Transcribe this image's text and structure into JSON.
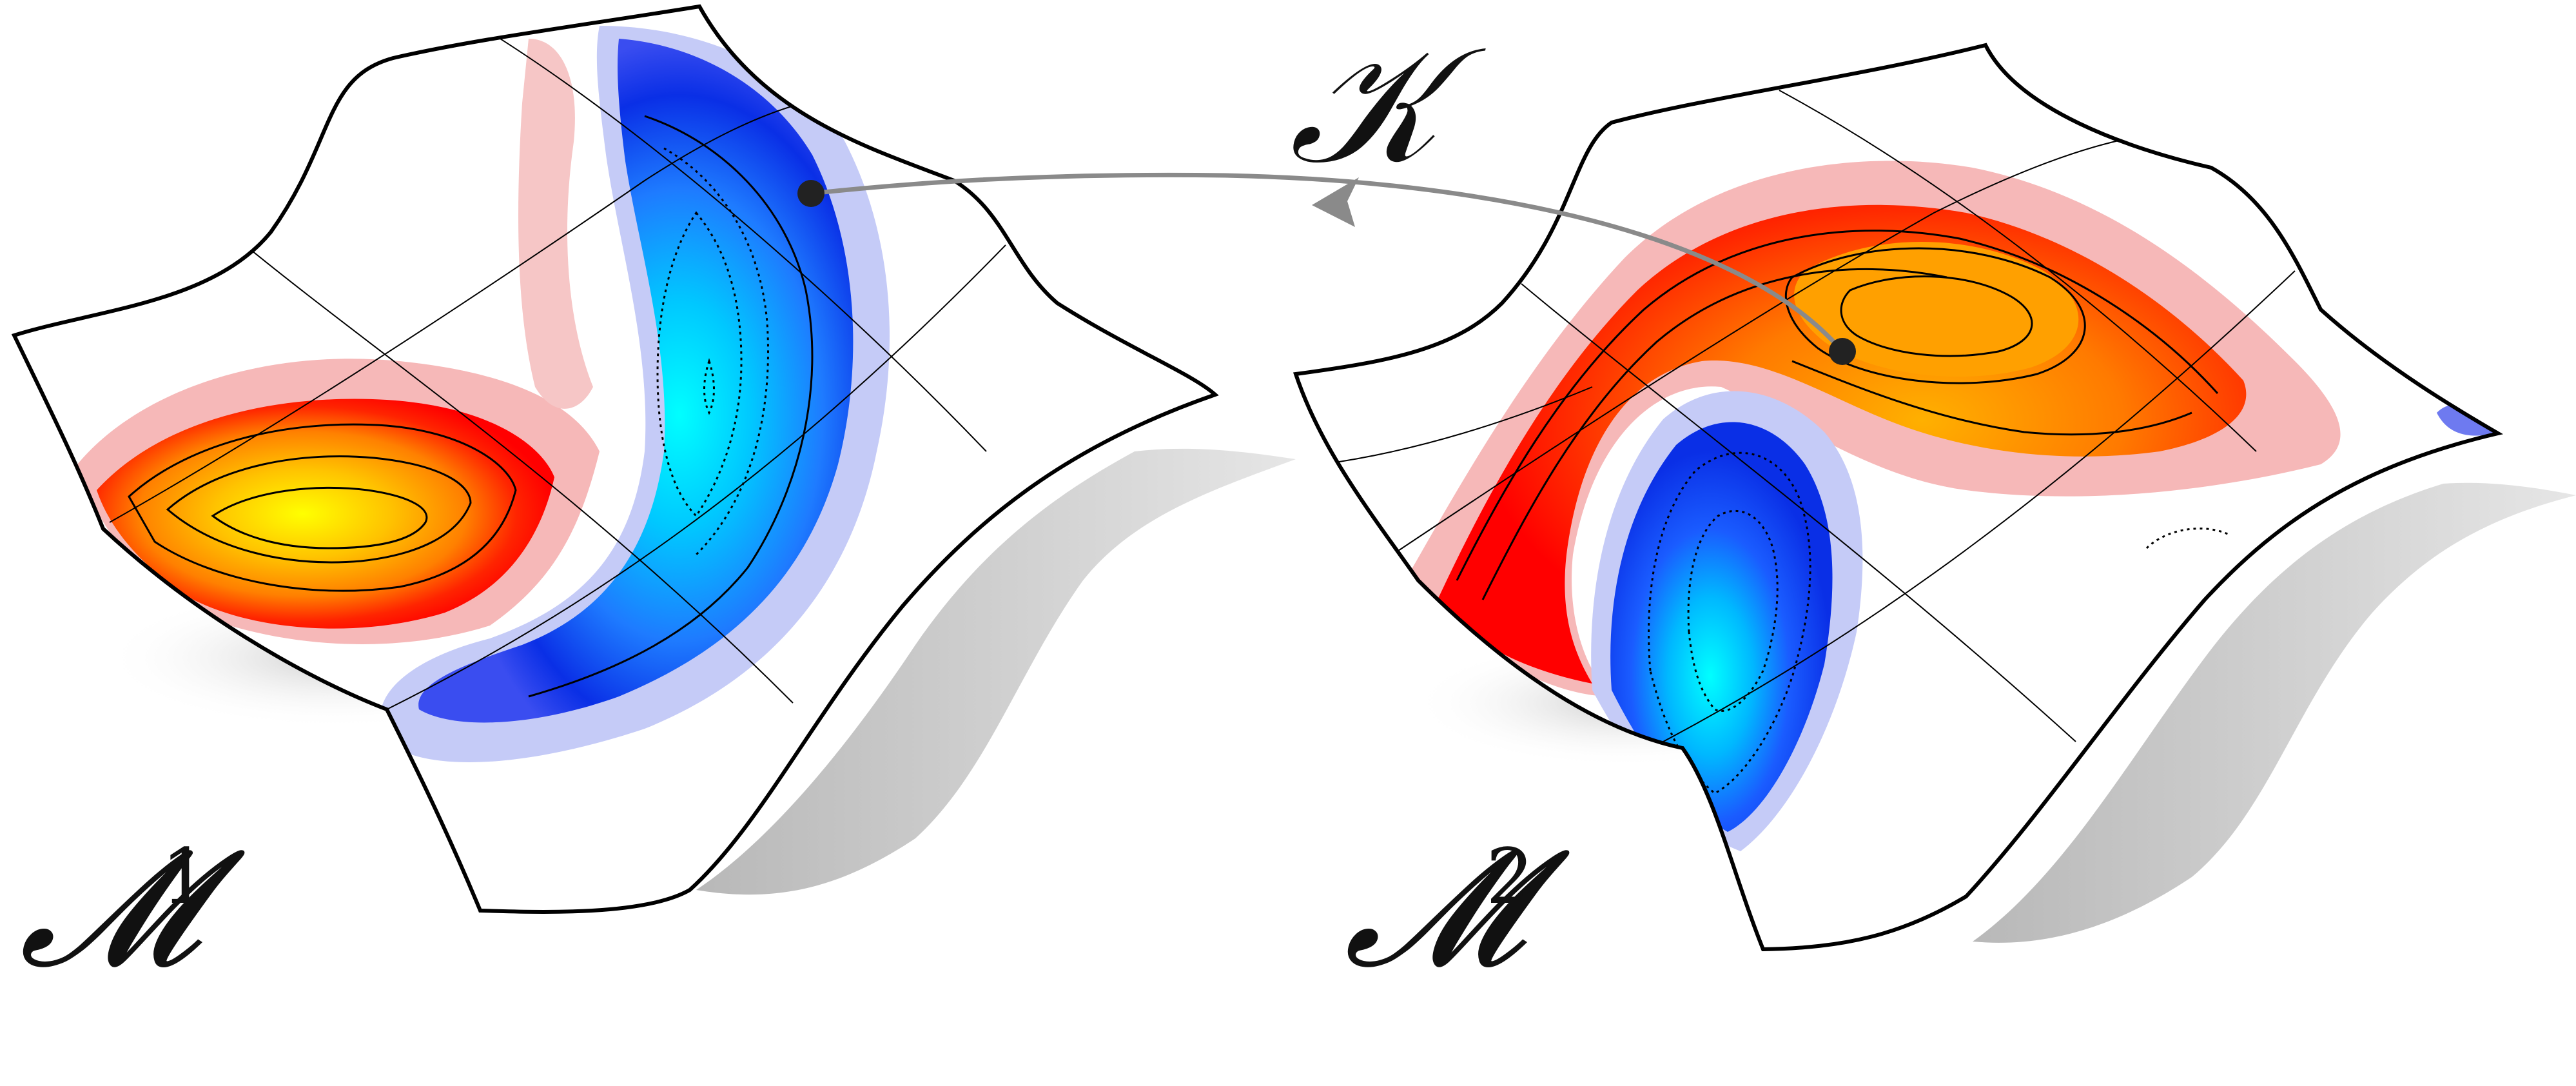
{
  "labels": {
    "manifold1": {
      "symbol": "𝓜",
      "superscript": "1"
    },
    "manifold2": {
      "symbol": "𝓜",
      "superscript": "2"
    },
    "map": {
      "symbol": "𝒦"
    }
  },
  "colors": {
    "positive_core": "#ffff00",
    "positive_mid": "#ff8c00",
    "positive_outer": "#ff0000",
    "positive_halo": "#f8b4b4",
    "negative_core": "#00ffff",
    "negative_mid": "#1e90ff",
    "negative_outer": "#0a2fe6",
    "negative_halo": "#b9c0f5",
    "surface_outline": "#000000",
    "shadow": "#c8c8c8",
    "arrow": "#8a8a8a",
    "point": "#222222"
  }
}
